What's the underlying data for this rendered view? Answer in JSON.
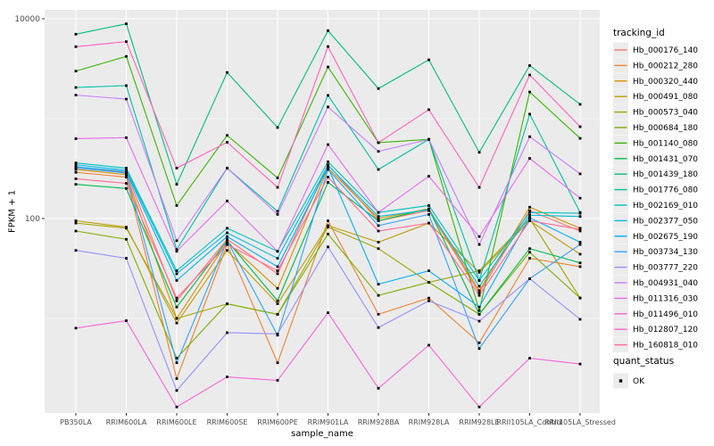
{
  "figure": {
    "xlabel": "sample_name",
    "ylabel": "FPKM + 1",
    "legend_color_title": "tracking_id",
    "legend_shape_title": "quant_status"
  },
  "chart_data": {
    "type": "line",
    "title": "",
    "xlabel": "sample_name",
    "ylabel": "FPKM + 1",
    "y_scale": "log10",
    "ylim": [
      1.1,
      12300
    ],
    "grid": "on",
    "legend_position": "right",
    "categories": [
      "PB350LA",
      "RRIM600LA",
      "RRIM600LE",
      "RRIM600SE",
      "RRIM600PE",
      "RRIM901LA",
      "RRIM928BA",
      "RRIM928LA",
      "RRIM928LE",
      "RRII105LA_Control",
      "RRII105LA_Stressed"
    ],
    "y_major_ticks": [
      100,
      10000
    ],
    "y_minor_gridlines": [
      10,
      1000
    ],
    "legend": {
      "color_title": "tracking_id",
      "shape_title": "quant_status",
      "shape_items": [
        {
          "label": "OK",
          "shape": "square",
          "color": "#000000"
        }
      ]
    },
    "point": {
      "shape": "square",
      "color": "#000000",
      "size": 2.8
    },
    "style": {
      "panel_bg": "#EBEBEB",
      "grid_color": "#FFFFFF",
      "key_bg": "#ECECEC",
      "tick_text_color": "#4D4D4D",
      "tick_mark_color": "#333333"
    },
    "series": [
      {
        "name": "Hb_000176_140",
        "color": "#F8766D",
        "values": [
          330,
          290,
          15,
          62,
          28,
          345,
          95,
          120,
          18,
          120,
          75
        ]
      },
      {
        "name": "Hb_000212_280",
        "color": "#EA8331",
        "values": [
          290,
          260,
          2.5,
          55,
          3.6,
          95,
          11,
          16,
          5.7,
          40,
          33
        ]
      },
      {
        "name": "Hb_000320_440",
        "color": "#D89000",
        "values": [
          310,
          275,
          10,
          58,
          20,
          320,
          100,
          125,
          19,
          130,
          80
        ]
      },
      {
        "name": "Hb_000491_080",
        "color": "#C09B00",
        "values": [
          95,
          82,
          9,
          48,
          14,
          85,
          58,
          90,
          29,
          95,
          44
        ]
      },
      {
        "name": "Hb_000573_040",
        "color": "#A3A500",
        "values": [
          90,
          80,
          10,
          14,
          11,
          82,
          50,
          23,
          30,
          100,
          16
        ]
      },
      {
        "name": "Hb_000684_180",
        "color": "#7CAE00",
        "values": [
          75,
          62,
          4,
          14,
          11,
          70,
          17,
          23,
          11,
          46,
          16
        ]
      },
      {
        "name": "Hb_001140_080",
        "color": "#39B600",
        "values": [
          2990,
          4200,
          135,
          680,
          255,
          3290,
          575,
          620,
          12,
          1850,
          635
        ]
      },
      {
        "name": "Hb_001431_070",
        "color": "#00BB4E",
        "values": [
          220,
          200,
          13,
          60,
          15,
          230,
          95,
          125,
          11,
          50,
          36
        ]
      },
      {
        "name": "Hb_001439_180",
        "color": "#00BF7D",
        "values": [
          7000,
          8900,
          220,
          2900,
          815,
          7600,
          2000,
          3880,
          460,
          3400,
          1390
        ]
      },
      {
        "name": "Hb_001776_080",
        "color": "#00C1A3",
        "values": [
          2050,
          2140,
          49,
          320,
          118,
          1710,
          310,
          620,
          24,
          1110,
          115
        ]
      },
      {
        "name": "Hb_002169_010",
        "color": "#00BFC4",
        "values": [
          360,
          320,
          30,
          80,
          47,
          370,
          115,
          135,
          24,
          115,
          113
        ]
      },
      {
        "name": "Hb_002377_050",
        "color": "#00BAE0",
        "values": [
          345,
          305,
          28,
          72,
          40,
          340,
          105,
          122,
          21,
          108,
          105
        ]
      },
      {
        "name": "Hb_002675_190",
        "color": "#00B0F6",
        "values": [
          330,
          295,
          24,
          66,
          33,
          325,
          22,
          30,
          13,
          102,
          58
        ]
      },
      {
        "name": "Hb_003734_130",
        "color": "#35A2FF",
        "values": [
          320,
          285,
          3.6,
          60,
          6.8,
          310,
          85,
          110,
          5,
          25,
          55
        ]
      },
      {
        "name": "Hb_003777_220",
        "color": "#9590FF",
        "values": [
          48,
          40,
          1.9,
          7.2,
          7,
          52,
          8.1,
          15,
          9.4,
          25,
          9.8
        ]
      },
      {
        "name": "Hb_004931_040",
        "color": "#C77CFF",
        "values": [
          1720,
          1570,
          60,
          320,
          110,
          1310,
          470,
          620,
          55,
          660,
          280
        ]
      },
      {
        "name": "Hb_011316_030",
        "color": "#E76BF3",
        "values": [
          630,
          645,
          47,
          150,
          47,
          550,
          115,
          265,
          66,
          400,
          160
        ]
      },
      {
        "name": "Hb_011496_010",
        "color": "#FA62DB",
        "values": [
          8,
          9.5,
          1.3,
          2.6,
          2.4,
          11.4,
          2,
          5.4,
          1.3,
          4,
          3.5
        ]
      },
      {
        "name": "Hb_012807_120",
        "color": "#FF62BC",
        "values": [
          5250,
          5900,
          320,
          580,
          205,
          5270,
          575,
          1230,
          205,
          2740,
          830
        ]
      },
      {
        "name": "Hb_160818_010",
        "color": "#FF6A98",
        "values": [
          250,
          225,
          16,
          55,
          30,
          260,
          75,
          90,
          17,
          95,
          78
        ]
      }
    ]
  }
}
